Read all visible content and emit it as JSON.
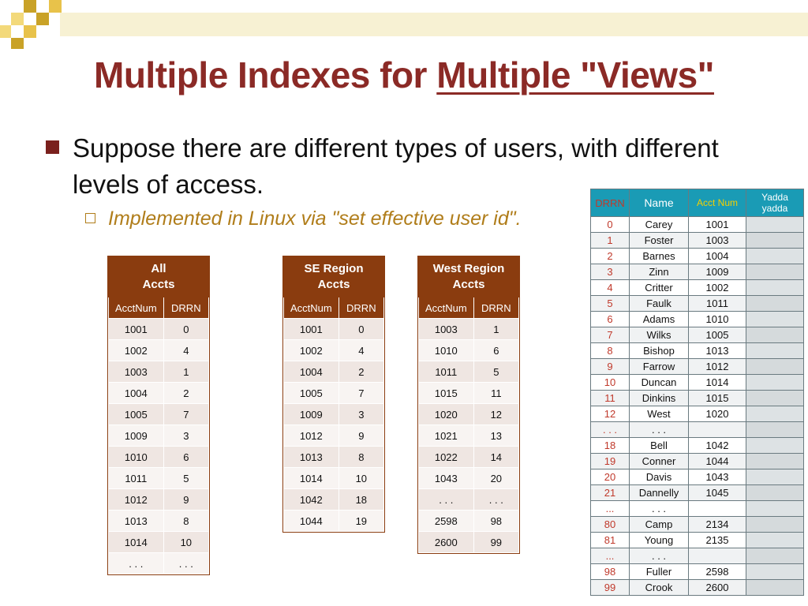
{
  "title": {
    "main": "Multiple Indexes for ",
    "underlined": "Multiple \"Views\""
  },
  "bullet": "Suppose there are different types of users, with different levels of access.",
  "sub_bullet": "Implemented in Linux via \"set effective user id\".",
  "colors": {
    "title": "#8b2a26",
    "table_header": "#8a3c0f",
    "master_header": "#1a9bb5",
    "drrn_red": "#c0392b",
    "sub_bullet": "#b07d1a"
  },
  "index_tables": [
    {
      "caption_line1": "All",
      "caption_line2": "Accts",
      "col1": "AcctNum",
      "col2": "DRRN",
      "rows": [
        [
          "1001",
          "0"
        ],
        [
          "1002",
          "4"
        ],
        [
          "1003",
          "1"
        ],
        [
          "1004",
          "2"
        ],
        [
          "1005",
          "7"
        ],
        [
          "1009",
          "3"
        ],
        [
          "1010",
          "6"
        ],
        [
          "1011",
          "5"
        ],
        [
          "1012",
          "9"
        ],
        [
          "1013",
          "8"
        ],
        [
          "1014",
          "10"
        ],
        [
          ". . .",
          ". . ."
        ]
      ]
    },
    {
      "caption_line1": "SE Region",
      "caption_line2": "Accts",
      "col1": "AcctNum",
      "col2": "DRRN",
      "rows": [
        [
          "1001",
          "0"
        ],
        [
          "1002",
          "4"
        ],
        [
          "1004",
          "2"
        ],
        [
          "1005",
          "7"
        ],
        [
          "1009",
          "3"
        ],
        [
          "1012",
          "9"
        ],
        [
          "1013",
          "8"
        ],
        [
          "1014",
          "10"
        ],
        [
          "1042",
          "18"
        ],
        [
          "1044",
          "19"
        ]
      ]
    },
    {
      "caption_line1": "West Region",
      "caption_line2": "Accts",
      "col1": "AcctNum",
      "col2": "DRRN",
      "rows": [
        [
          "1003",
          "1"
        ],
        [
          "1010",
          "6"
        ],
        [
          "1011",
          "5"
        ],
        [
          "1015",
          "11"
        ],
        [
          "1020",
          "12"
        ],
        [
          "1021",
          "13"
        ],
        [
          "1022",
          "14"
        ],
        [
          "1043",
          "20"
        ],
        [
          ". . .",
          ". . ."
        ],
        [
          "2598",
          "98"
        ],
        [
          "2600",
          "99"
        ]
      ]
    }
  ],
  "master_table": {
    "headers": {
      "drrn": "DRRN",
      "name": "Name",
      "acct": "Acct Num",
      "yadda_line1": "Yadda",
      "yadda_line2": "yadda"
    },
    "rows": [
      [
        "0",
        "Carey",
        "1001"
      ],
      [
        "1",
        "Foster",
        "1003"
      ],
      [
        "2",
        "Barnes",
        "1004"
      ],
      [
        "3",
        "Zinn",
        "1009"
      ],
      [
        "4",
        "Critter",
        "1002"
      ],
      [
        "5",
        "Faulk",
        "1011"
      ],
      [
        "6",
        "Adams",
        "1010"
      ],
      [
        "7",
        "Wilks",
        "1005"
      ],
      [
        "8",
        "Bishop",
        "1013"
      ],
      [
        "9",
        "Farrow",
        "1012"
      ],
      [
        "10",
        "Duncan",
        "1014"
      ],
      [
        "11",
        "Dinkins",
        "1015"
      ],
      [
        "12",
        "West",
        "1020"
      ],
      [
        ". . .",
        ". . .",
        ""
      ],
      [
        "18",
        "Bell",
        "1042"
      ],
      [
        "19",
        "Conner",
        "1044"
      ],
      [
        "20",
        "Davis",
        "1043"
      ],
      [
        "21",
        "Dannelly",
        "1045"
      ],
      [
        "...",
        ". . .",
        ""
      ],
      [
        "80",
        "Camp",
        "2134"
      ],
      [
        "81",
        "Young",
        "2135"
      ],
      [
        "...",
        ". . .",
        ""
      ],
      [
        "98",
        "Fuller",
        "2598"
      ],
      [
        "99",
        "Crook",
        "2600"
      ]
    ]
  }
}
